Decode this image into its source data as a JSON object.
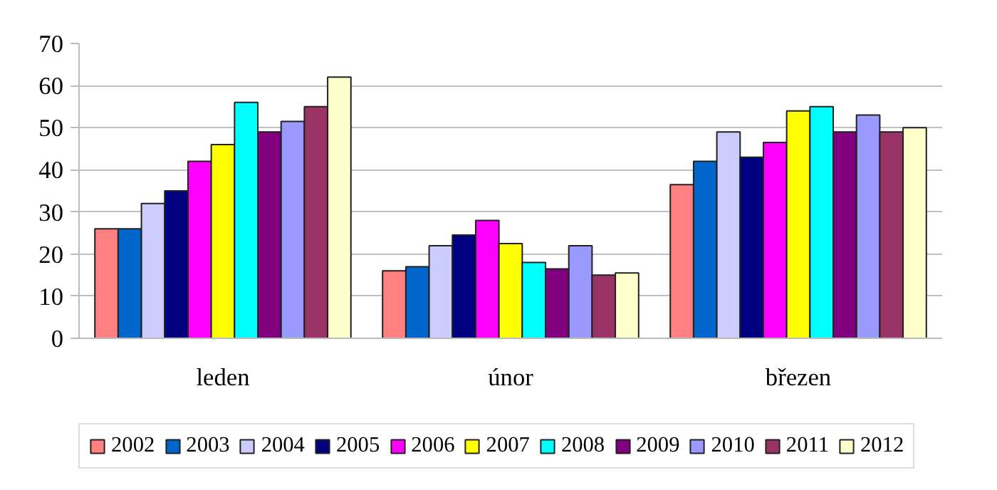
{
  "chart_data": {
    "type": "bar",
    "categories": [
      "leden",
      "únor",
      "březen"
    ],
    "series": [
      {
        "name": "2002",
        "color": "#ff8080",
        "values": [
          26,
          16,
          36.5
        ]
      },
      {
        "name": "2003",
        "color": "#0066cc",
        "values": [
          26,
          17,
          42
        ]
      },
      {
        "name": "2004",
        "color": "#ccccff",
        "values": [
          32,
          22,
          49
        ]
      },
      {
        "name": "2005",
        "color": "#000080",
        "values": [
          35,
          24.5,
          43
        ]
      },
      {
        "name": "2006",
        "color": "#ff00ff",
        "values": [
          42,
          28,
          46.5
        ]
      },
      {
        "name": "2007",
        "color": "#ffff00",
        "values": [
          46,
          22.5,
          54
        ]
      },
      {
        "name": "2008",
        "color": "#00ffff",
        "values": [
          56,
          18,
          55
        ]
      },
      {
        "name": "2009",
        "color": "#800080",
        "values": [
          49,
          16.5,
          49
        ]
      },
      {
        "name": "2010",
        "color": "#9999ff",
        "values": [
          51.5,
          22,
          53
        ]
      },
      {
        "name": "2011",
        "color": "#993366",
        "values": [
          55,
          15,
          49
        ]
      },
      {
        "name": "2012",
        "color": "#ffffcc",
        "values": [
          62,
          15.5,
          50
        ]
      }
    ],
    "ylim": [
      0,
      70
    ],
    "yticks": [
      0,
      10,
      20,
      30,
      40,
      50,
      60,
      70
    ],
    "grid": "y",
    "legend": "bottom"
  }
}
